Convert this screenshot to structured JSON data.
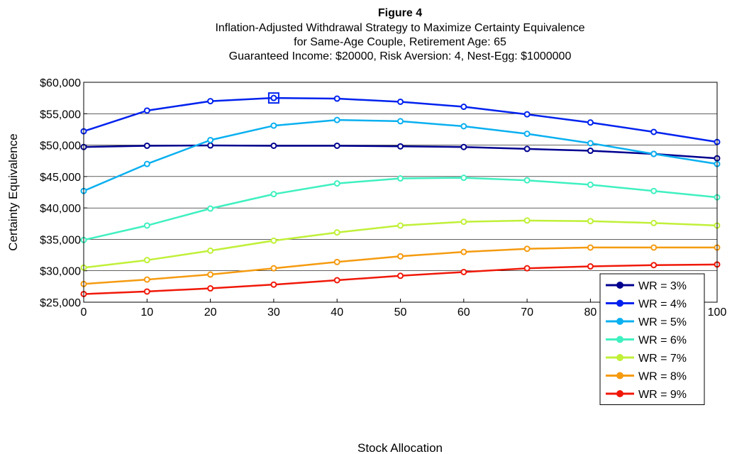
{
  "chart_data": {
    "type": "line",
    "title_lines": [
      "Figure 4",
      "Inflation-Adjusted Withdrawal Strategy to Maximize Certainty Equivalence",
      "for Same-Age Couple, Retirement Age: 65",
      "Guaranteed Income: $20000, Risk Aversion: 4, Nest-Egg: $1000000"
    ],
    "xlabel": "Stock Allocation",
    "ylabel": "Certainty Equivalence",
    "x": [
      0,
      10,
      20,
      30,
      40,
      50,
      60,
      70,
      80,
      90,
      100
    ],
    "xlim": [
      0,
      100
    ],
    "ylim": [
      25000,
      60000
    ],
    "xticks": [
      0,
      10,
      20,
      30,
      40,
      50,
      60,
      70,
      80,
      90,
      100
    ],
    "yticks": [
      25000,
      30000,
      35000,
      40000,
      45000,
      50000,
      55000,
      60000
    ],
    "ytick_labels": [
      "$25,000",
      "$30,000",
      "$35,000",
      "$40,000",
      "$45,000",
      "$50,000",
      "$55,000",
      "$60,000"
    ],
    "grid": "horizontal",
    "legend_position": "bottom-right",
    "series": [
      {
        "name": "WR = 3%",
        "color": "#00008f",
        "values": [
          49700,
          49900,
          49950,
          49900,
          49900,
          49800,
          49700,
          49400,
          49100,
          48600,
          47900
        ]
      },
      {
        "name": "WR = 4%",
        "color": "#0022ee",
        "values": [
          52200,
          55500,
          57000,
          57500,
          57400,
          56900,
          56100,
          54900,
          53600,
          52100,
          50500
        ]
      },
      {
        "name": "WR = 5%",
        "color": "#0ab0f0",
        "values": [
          42700,
          47000,
          50800,
          53100,
          54000,
          53800,
          53000,
          51800,
          50300,
          48600,
          47000
        ]
      },
      {
        "name": "WR = 6%",
        "color": "#3ff0c0",
        "values": [
          34900,
          37200,
          39900,
          42200,
          43900,
          44700,
          44800,
          44400,
          43700,
          42700,
          41700
        ]
      },
      {
        "name": "WR = 7%",
        "color": "#c0f038",
        "values": [
          30500,
          31700,
          33200,
          34800,
          36100,
          37200,
          37800,
          38000,
          37900,
          37600,
          37200
        ]
      },
      {
        "name": "WR = 8%",
        "color": "#f59b10",
        "values": [
          27900,
          28600,
          29400,
          30400,
          31400,
          32300,
          33000,
          33500,
          33700,
          33700,
          33700
        ]
      },
      {
        "name": "WR = 9%",
        "color": "#f01808",
        "values": [
          26300,
          26700,
          27200,
          27800,
          28500,
          29200,
          29800,
          30400,
          30700,
          30900,
          31000
        ]
      }
    ],
    "highlight": {
      "series": "WR = 4%",
      "x": 30,
      "y": 57500,
      "color": "#0022ee"
    }
  }
}
